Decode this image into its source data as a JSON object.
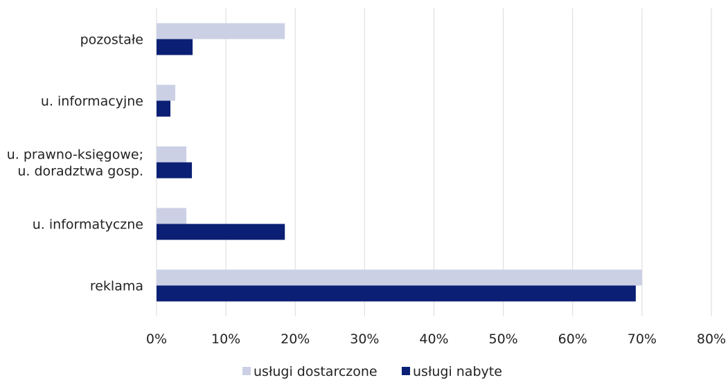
{
  "chart_data": {
    "type": "bar",
    "orientation": "horizontal",
    "categories": [
      [
        "pozostałe"
      ],
      [
        "u. informacyjne"
      ],
      [
        "u. prawno-księgowe;",
        "u. doradztwa gosp."
      ],
      [
        "u. informatyczne"
      ],
      [
        "reklama"
      ]
    ],
    "series": [
      {
        "name": "usługi dostarczone",
        "color": "#cbd0e5",
        "values": [
          18.5,
          2.7,
          4.3,
          4.3,
          70.0
        ]
      },
      {
        "name": "usługi nabyte",
        "color": "#0b1f74",
        "values": [
          5.2,
          2.0,
          5.1,
          18.5,
          69.1
        ]
      }
    ],
    "xlim": [
      0,
      80
    ],
    "xticks": [
      "0%",
      "10%",
      "20%",
      "30%",
      "40%",
      "50%",
      "60%",
      "70%",
      "80%"
    ],
    "grid": "vertical",
    "legend": "bottom-center",
    "gridline_color": "#d9d9d9"
  }
}
